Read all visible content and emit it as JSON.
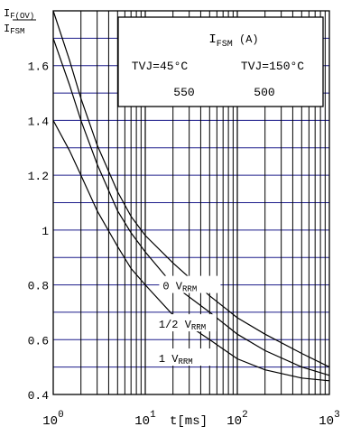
{
  "chart_data": {
    "type": "line",
    "y_axis_label": {
      "main": "I",
      "sub": "F(OV)",
      "denominator_main": "I",
      "denominator_sub": "FSM"
    },
    "x_axis_label": "t[ms]",
    "x_scale": "log",
    "xlim": [
      1,
      1000
    ],
    "ylim": [
      0.4,
      1.8
    ],
    "y_ticks": [
      {
        "value": 0.4,
        "label": "0.4"
      },
      {
        "value": 0.6,
        "label": "0.6"
      },
      {
        "value": 0.8,
        "label": "0.8"
      },
      {
        "value": 1.0,
        "label": "1"
      },
      {
        "value": 1.2,
        "label": "1.2"
      },
      {
        "value": 1.4,
        "label": "1.4"
      },
      {
        "value": 1.6,
        "label": "1.6"
      }
    ],
    "x_ticks": [
      {
        "value": 1,
        "base": "10",
        "exp": "0"
      },
      {
        "value": 10,
        "base": "10",
        "exp": "1"
      },
      {
        "value": 100,
        "base": "10",
        "exp": "2"
      },
      {
        "value": 1000,
        "base": "10",
        "exp": "3"
      }
    ],
    "grid": true,
    "grid_color_major": "#1c1c8a",
    "grid_color_minor": "#000000",
    "line_color": "#000000",
    "series": [
      {
        "name": "0 VRRM",
        "label_main": "0 V",
        "label_sub": "RRM",
        "x": [
          1,
          1.5,
          2,
          3,
          5,
          7,
          10,
          20,
          50,
          100,
          200,
          500,
          1000
        ],
        "y": [
          1.8,
          1.62,
          1.48,
          1.31,
          1.14,
          1.05,
          0.98,
          0.88,
          0.76,
          0.68,
          0.62,
          0.55,
          0.5
        ]
      },
      {
        "name": "1/2 VRRM",
        "label_main": "1/2 V",
        "label_sub": "RRM",
        "x": [
          1,
          1.5,
          2,
          3,
          5,
          7,
          10,
          20,
          50,
          100,
          200,
          500,
          1000
        ],
        "y": [
          1.7,
          1.53,
          1.4,
          1.24,
          1.07,
          0.99,
          0.92,
          0.8,
          0.7,
          0.62,
          0.56,
          0.5,
          0.47
        ]
      },
      {
        "name": "1 VRRM",
        "label_main": "1 V",
        "label_sub": "RRM",
        "x": [
          1,
          1.5,
          2,
          3,
          5,
          7,
          10,
          20,
          50,
          100,
          200,
          500,
          1000
        ],
        "y": [
          1.4,
          1.29,
          1.2,
          1.07,
          0.94,
          0.86,
          0.8,
          0.69,
          0.6,
          0.53,
          0.49,
          0.46,
          0.45
        ]
      }
    ],
    "info_box": {
      "title_main": "I",
      "title_sub": "FSM",
      "title_unit": "(A)",
      "col1_header": "TVJ=45°C",
      "col2_header": "TVJ=150°C",
      "col1_value": "550",
      "col2_value": "500"
    }
  }
}
